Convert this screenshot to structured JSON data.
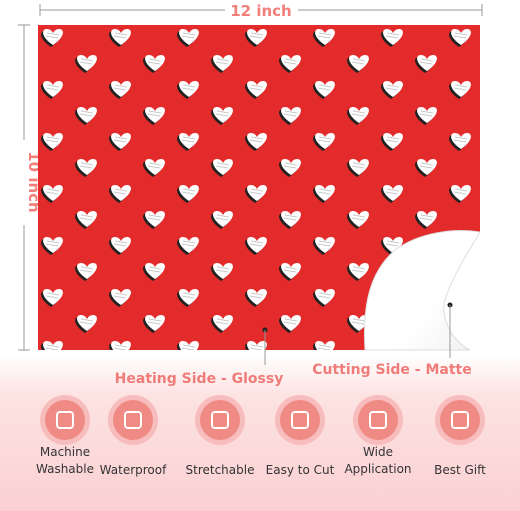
{
  "dimensions": {
    "width": "12 inch",
    "height": "10 inch"
  },
  "sides": {
    "heating": "Heating Side - Glossy",
    "cutting": "Cutting Side - Matte"
  },
  "features": [
    {
      "lines": [
        "Machine",
        "Washable"
      ]
    },
    {
      "lines": [
        "Waterproof"
      ]
    },
    {
      "lines": [
        "Stretchable"
      ]
    },
    {
      "lines": [
        "Easy to Cut"
      ]
    },
    {
      "lines": [
        "Wide",
        "Application"
      ]
    },
    {
      "lines": [
        "Best Gift"
      ]
    }
  ]
}
